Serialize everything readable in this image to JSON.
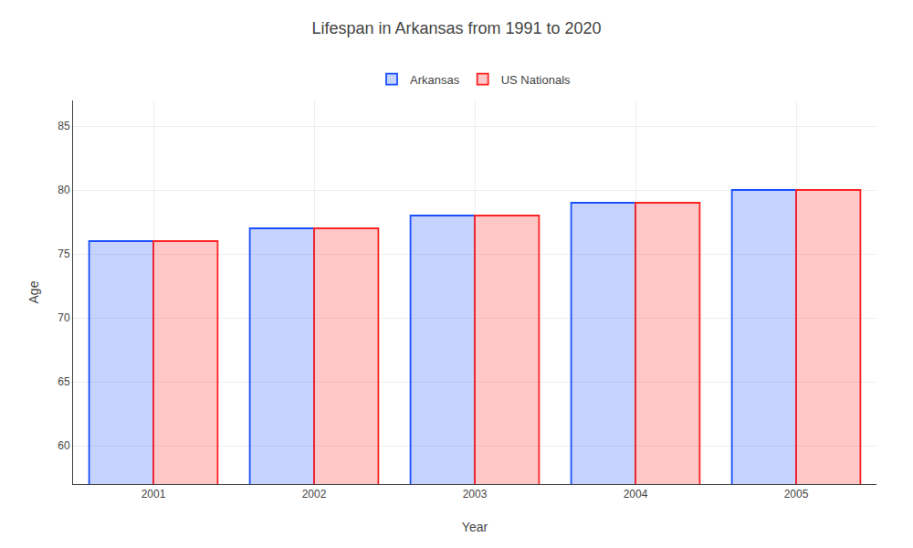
{
  "chart_data": {
    "type": "bar",
    "title": "Lifespan in Arkansas from 1991 to 2020",
    "xlabel": "Year",
    "ylabel": "Age",
    "categories": [
      "2001",
      "2002",
      "2003",
      "2004",
      "2005"
    ],
    "series": [
      {
        "name": "Arkansas",
        "color": "#1a4fff",
        "values": [
          76.0,
          77.0,
          78.0,
          79.0,
          80.0
        ]
      },
      {
        "name": "US Nationals",
        "color": "#ff2222",
        "values": [
          76.0,
          77.0,
          78.0,
          79.0,
          80.0
        ]
      }
    ],
    "ylim": [
      57,
      87
    ],
    "yticks": [
      60,
      65,
      70,
      75,
      80,
      85
    ],
    "grid": true,
    "legend": "top"
  }
}
